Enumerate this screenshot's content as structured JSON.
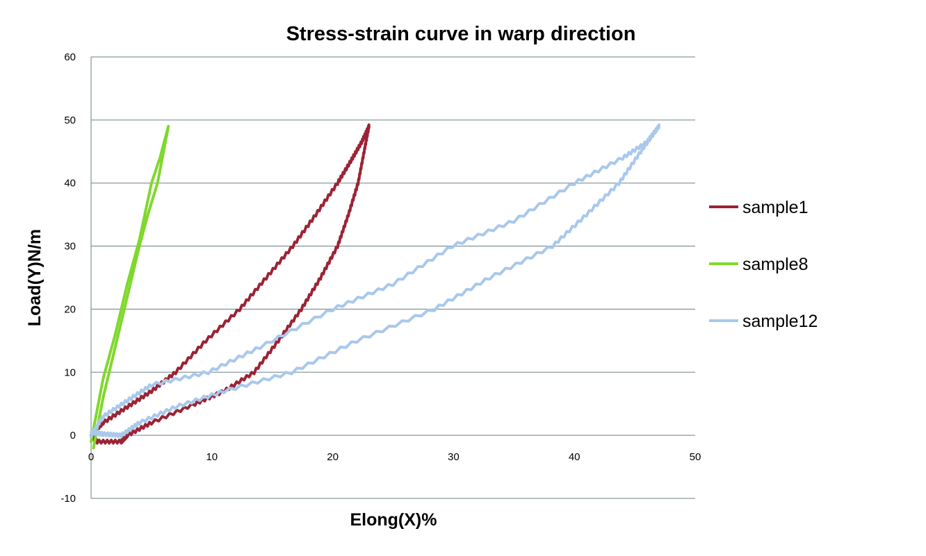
{
  "chart_data": {
    "type": "line",
    "title": "Stress-strain curve in warp direction",
    "xlabel": "Elong(X)%",
    "ylabel": "Load(Y)N/m",
    "xlim": [
      0,
      50
    ],
    "ylim": [
      -10,
      60
    ],
    "xticks": [
      0,
      10,
      20,
      30,
      40,
      50
    ],
    "yticks": [
      -10,
      0,
      10,
      20,
      30,
      40,
      50,
      60
    ],
    "grid": "horizontal",
    "legend": "right",
    "series": [
      {
        "name": "sample1",
        "color": "#9b2335",
        "x": [
          0,
          1,
          3,
          5,
          7,
          9.5,
          12.3,
          14.5,
          16.7,
          18.6,
          20.4,
          21.5,
          22.4,
          23,
          23,
          22.6,
          22.1,
          21.3,
          20.4,
          19,
          17.4,
          15.5,
          13.5,
          11,
          8.6,
          5,
          3,
          2.5,
          0.5,
          0
        ],
        "y": [
          0,
          2,
          4.5,
          7,
          10,
          15,
          20,
          25,
          30,
          35,
          40,
          43.5,
          46.5,
          49,
          49,
          45,
          40,
          35,
          30,
          25,
          20,
          15,
          10,
          7,
          5,
          2,
          0,
          -1,
          -1,
          0
        ]
      },
      {
        "name": "sample8",
        "color": "#7fd82c",
        "x": [
          0,
          0.5,
          1,
          2,
          3,
          4,
          5,
          5.7,
          6.4,
          6.4,
          5.5,
          4.7,
          4,
          3,
          2,
          1,
          0.5,
          0.2
        ],
        "y": [
          -1,
          4,
          9,
          16,
          24,
          31,
          40,
          44,
          49,
          49,
          40,
          35,
          30,
          22,
          14,
          6,
          1,
          -2
        ]
      },
      {
        "name": "sample12",
        "color": "#a9c8ec",
        "x": [
          0,
          1,
          3,
          5,
          9.7,
          14,
          20,
          25,
          29.9,
          35,
          40,
          44,
          46,
          47,
          47,
          45.5,
          43.7,
          41,
          38.2,
          33,
          28.4,
          22,
          16.6,
          11,
          7,
          4,
          2.5,
          1,
          0
        ],
        "y": [
          0,
          3,
          5.5,
          8,
          10,
          14,
          20,
          24,
          30,
          34,
          40,
          44,
          46.5,
          49,
          49,
          45,
          40,
          35,
          30,
          25,
          20,
          15,
          10,
          7,
          4.5,
          2,
          0,
          0.2,
          0.5
        ]
      }
    ]
  }
}
